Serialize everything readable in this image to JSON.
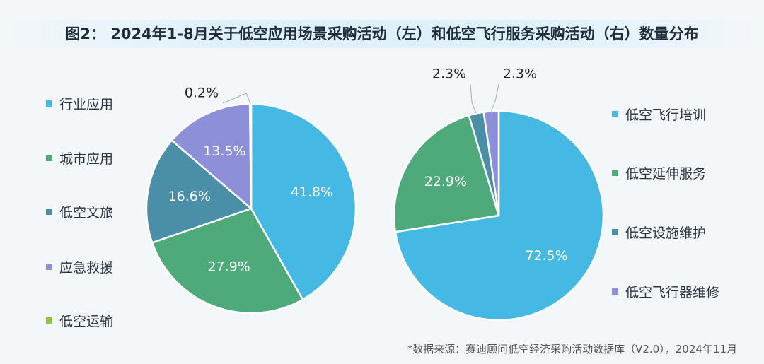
{
  "title": "图2：  2024年1-8月关于低空应用场景采购活动（左）和低空飞行服务采购活动（右）数量分布",
  "source": "*数据来源：赛迪顾问低空经济采购活动数据库（V2.0），2024年11月",
  "chart_data": [
    {
      "type": "pie",
      "categories": [
        "行业应用",
        "城市应用",
        "低空文旅",
        "应急救援",
        "低空运输"
      ],
      "values": [
        41.8,
        27.9,
        16.6,
        13.5,
        0.2
      ],
      "labels": [
        "41.8%",
        "27.9%",
        "16.6%",
        "13.5%",
        "0.2%"
      ],
      "colors": [
        "#45b9e4",
        "#4ea97b",
        "#4a8fa7",
        "#8d8fd9",
        "#8dc641"
      ],
      "legend": "left"
    },
    {
      "type": "pie",
      "categories": [
        "低空飞行培训",
        "低空延伸服务",
        "低空设施维护",
        "低空飞行器维修"
      ],
      "values": [
        72.5,
        22.9,
        2.3,
        2.3
      ],
      "labels": [
        "72.5%",
        "22.9%",
        "2.3%",
        "2.3%"
      ],
      "colors": [
        "#45b9e4",
        "#4ea97b",
        "#4a8fa7",
        "#8d8fd9"
      ],
      "legend": "right"
    }
  ]
}
